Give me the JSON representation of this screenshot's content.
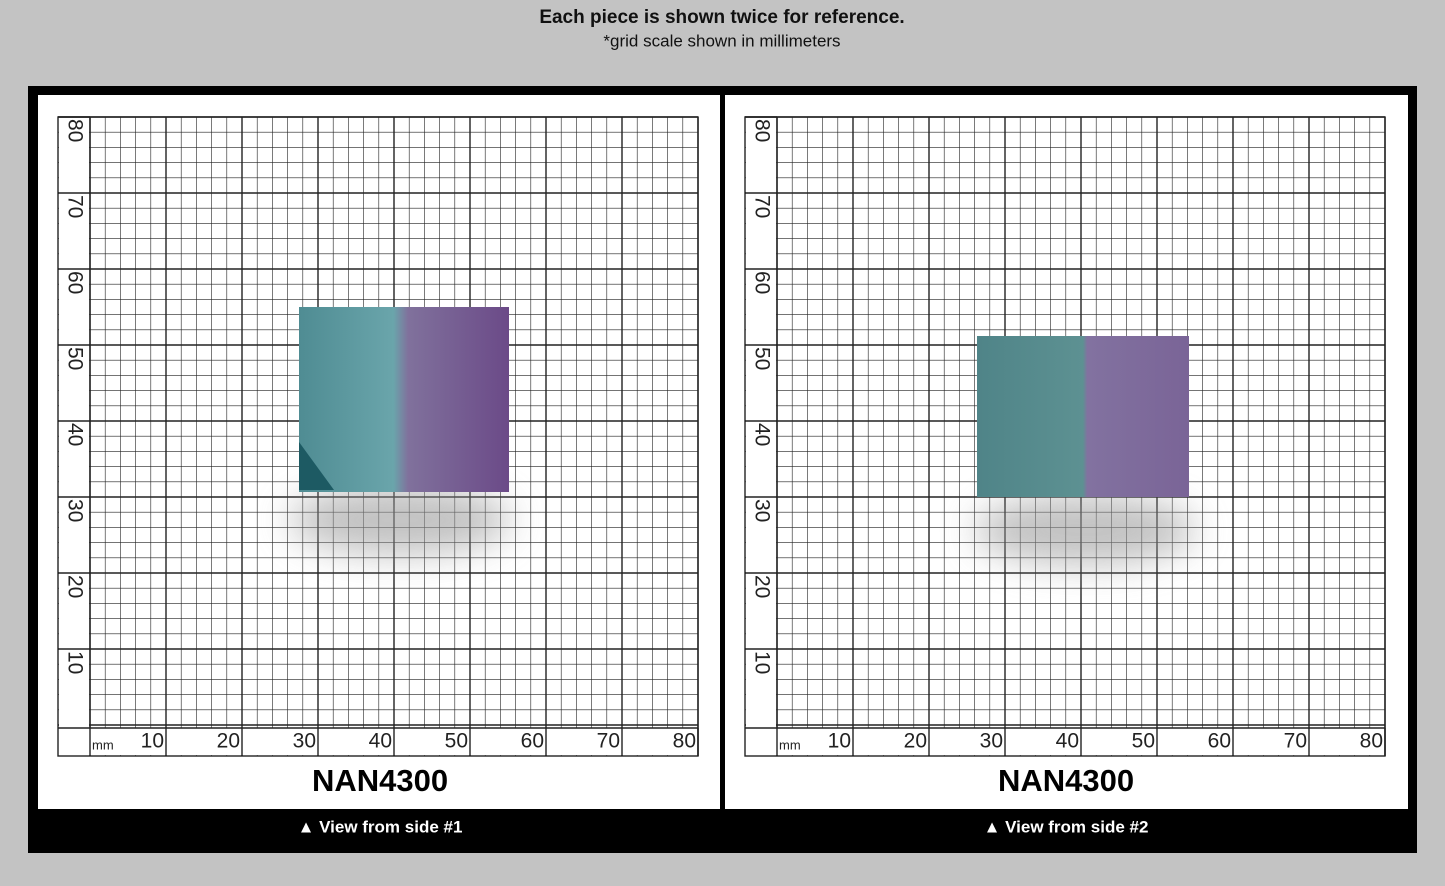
{
  "header": {
    "title": "Each piece is shown twice for reference.",
    "subtitle": "*grid scale shown in millimeters"
  },
  "panels": [
    {
      "caption": "NAN4300",
      "footer": "▲ View from side #1",
      "unit": "mm",
      "x_labels": [
        10,
        20,
        30,
        40,
        50,
        60,
        70,
        80
      ],
      "y_labels": [
        10,
        20,
        30,
        40,
        50,
        60,
        70,
        80
      ]
    },
    {
      "caption": "NAN4300",
      "footer": "▲ View from side #2",
      "unit": "mm",
      "x_labels": [
        10,
        20,
        30,
        40,
        50,
        60,
        70,
        80
      ],
      "y_labels": [
        10,
        20,
        30,
        40,
        50,
        60,
        70,
        80
      ]
    }
  ]
}
